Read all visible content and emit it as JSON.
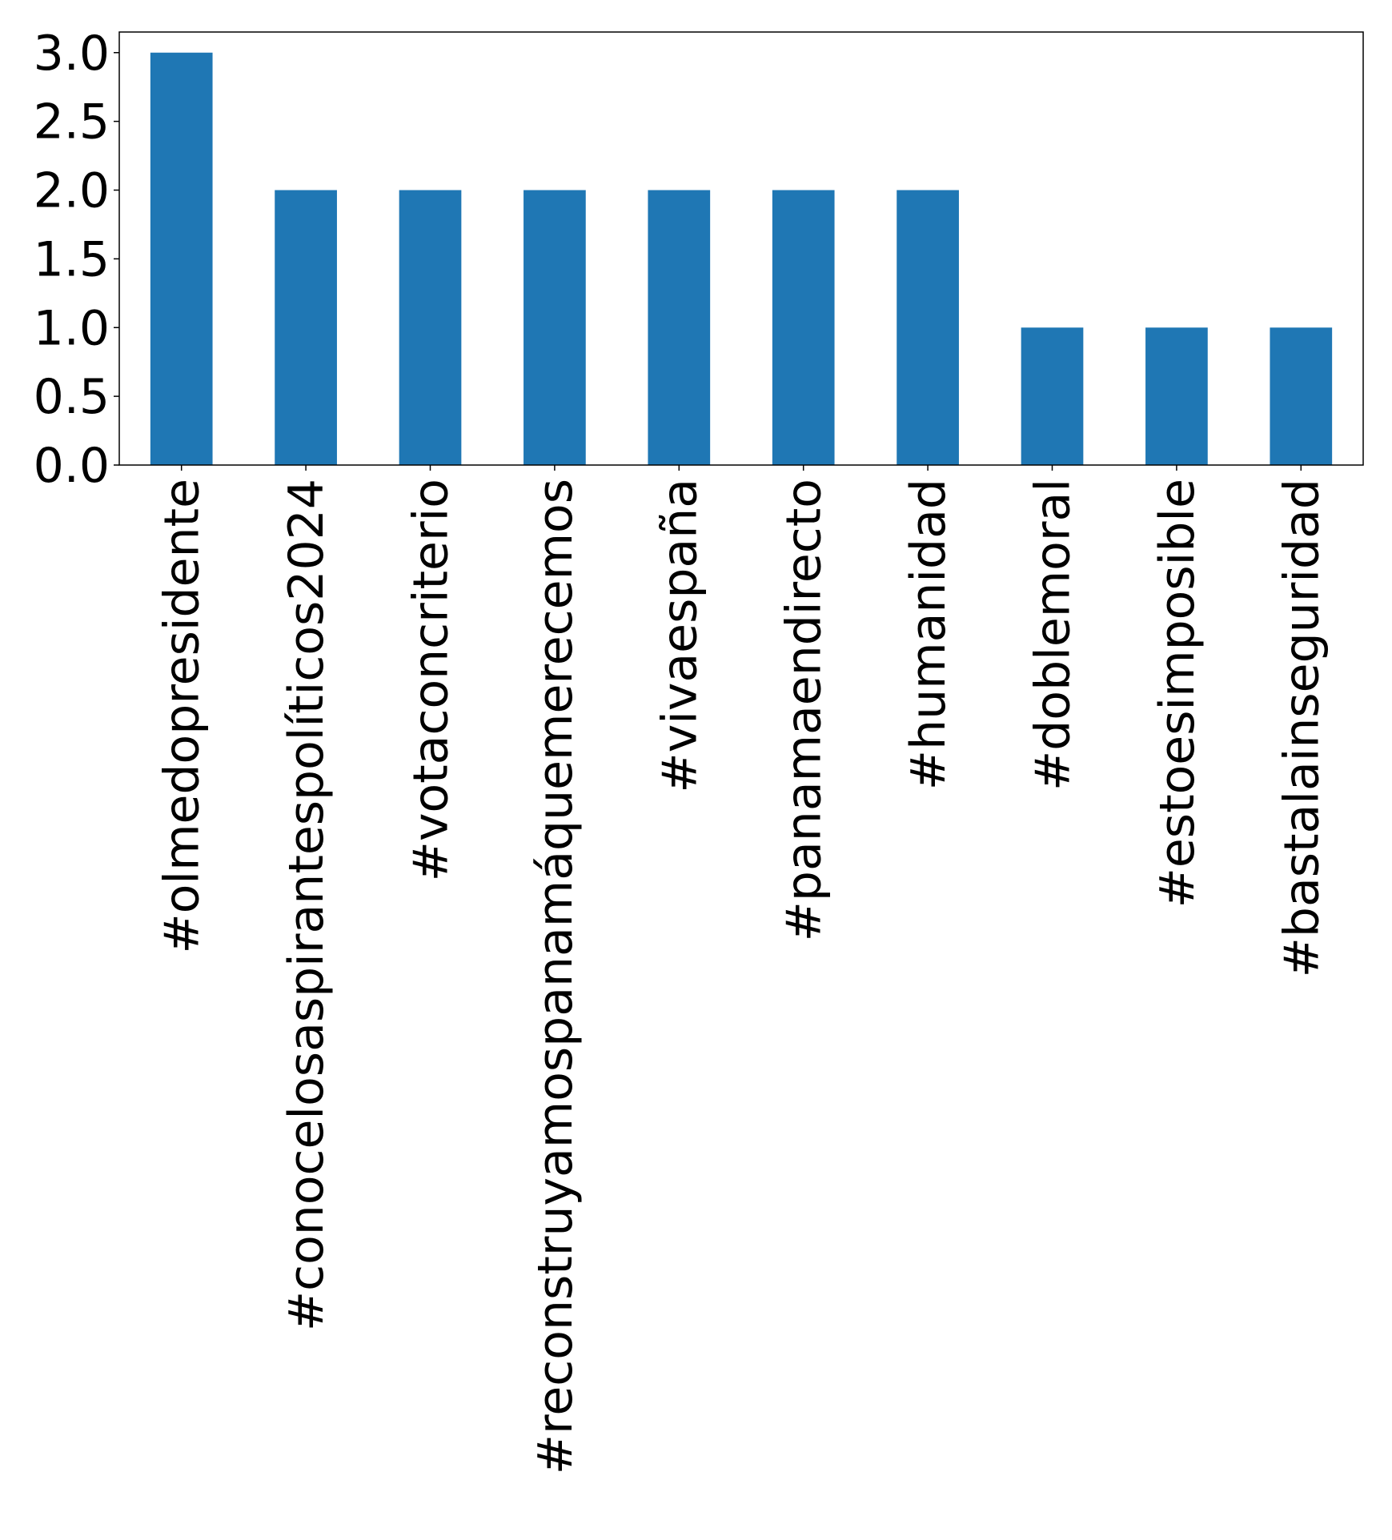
{
  "chart_data": {
    "type": "bar",
    "categories": [
      "#olmedopresidente",
      "#conocelosaspirantespolíticos2024",
      "#votaconcriterio",
      "#reconstruyamospanamáquemerecemos",
      "#vivaespaña",
      "#panamaendirecto",
      "#humanidad",
      "#doblemoral",
      "#estoesimposible",
      "#bastalainseguridad"
    ],
    "values": [
      3,
      2,
      2,
      2,
      2,
      2,
      2,
      1,
      1,
      1
    ],
    "title": "",
    "xlabel": "",
    "ylabel": "",
    "ylim": [
      0,
      3.15
    ],
    "yticks": [
      "0.0",
      "0.5",
      "1.0",
      "1.5",
      "2.0",
      "2.5",
      "3.0"
    ],
    "bar_color": "#1f77b4",
    "grid": false,
    "legend": "none"
  }
}
